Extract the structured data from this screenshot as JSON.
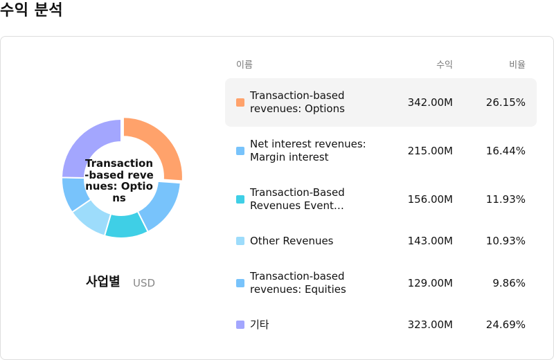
{
  "title": "수익 분석",
  "donut": {
    "center_label": "Transaction-based revenues: Options",
    "group_label": "사업별",
    "currency": "USD"
  },
  "table": {
    "headers": {
      "name": "이름",
      "revenue": "수익",
      "ratio": "비율"
    },
    "rows": [
      {
        "name": "Transaction-based revenues: Options",
        "revenue": "342.00M",
        "ratio": "26.15%",
        "color": "#ffa26b",
        "selected": true
      },
      {
        "name": "Net interest revenues: Margin interest",
        "revenue": "215.00M",
        "ratio": "16.44%",
        "color": "#78c3fb",
        "selected": false
      },
      {
        "name": "Transaction-Based Revenues Event…",
        "revenue": "156.00M",
        "ratio": "11.93%",
        "color": "#3fcfe6",
        "selected": false
      },
      {
        "name": "Other Revenues",
        "revenue": "143.00M",
        "ratio": "10.93%",
        "color": "#9ddcfb",
        "selected": false
      },
      {
        "name": "Transaction-based revenues: Equities",
        "revenue": "129.00M",
        "ratio": "9.86%",
        "color": "#78c3fb",
        "selected": false
      },
      {
        "name": "기타",
        "revenue": "323.00M",
        "ratio": "24.69%",
        "color": "#a3a6fe",
        "selected": false
      }
    ]
  },
  "chart_data": {
    "type": "pie",
    "categories": [
      "Transaction-based revenues: Options",
      "Net interest revenues: Margin interest",
      "Transaction-Based Revenues Event…",
      "Other Revenues",
      "Transaction-based revenues: Equities",
      "기타"
    ],
    "values": [
      342.0,
      215.0,
      156.0,
      143.0,
      129.0,
      323.0
    ],
    "percentages": [
      26.15,
      16.44,
      11.93,
      10.93,
      9.86,
      24.69
    ],
    "colors": [
      "#ffa26b",
      "#78c3fb",
      "#3fcfe6",
      "#9ddcfb",
      "#78c3fb",
      "#a3a6fe"
    ],
    "unit": "USD",
    "highlighted": "Transaction-based revenues: Options"
  }
}
